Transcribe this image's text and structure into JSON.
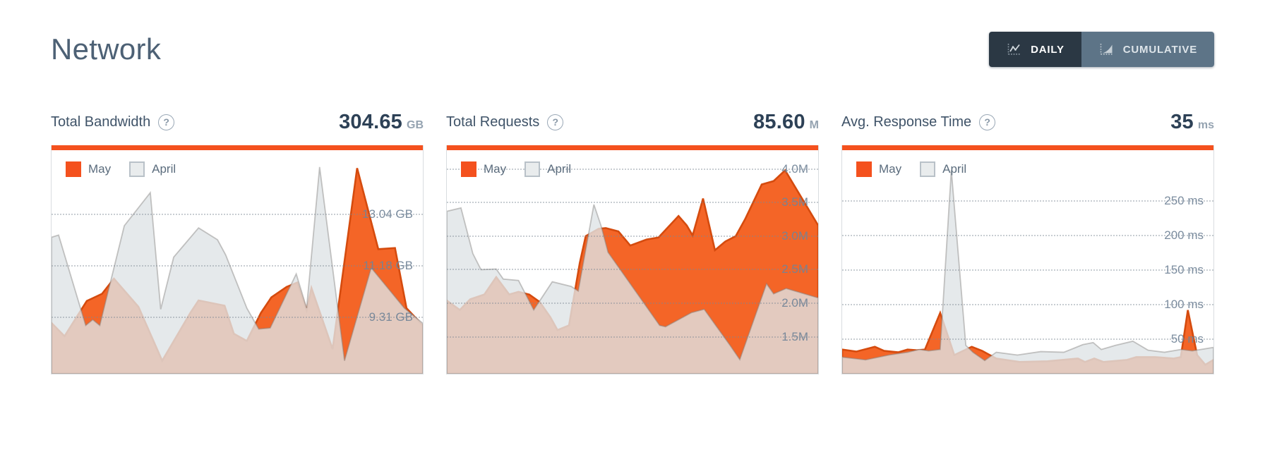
{
  "title": "Network",
  "toggle": {
    "daily_label": "DAILY",
    "cumulative_label": "CUMULATIVE",
    "active": "DAILY"
  },
  "colors": {
    "accent_orange": "#f4511e",
    "may_fill": "#f46527",
    "may_stroke": "#d54b0e",
    "april_fill": "#e8ebed",
    "april_stroke": "#c3cacf",
    "grid_dots": "#c8cdd1",
    "tick_text": "#8494a4",
    "title_text": "#4d6175",
    "value_text": "#2d4156",
    "daily_button_bg": "#2b3844",
    "cumulative_button_bg": "#5d7487"
  },
  "chart_data": [
    {
      "type": "area",
      "title": "Total Bandwidth",
      "summary_value": "304.65",
      "summary_unit": "GB",
      "legend": [
        "May",
        "April"
      ],
      "y_axis": {
        "min": 7.23,
        "max": 15.34,
        "unit": "GB",
        "grid": "dotted",
        "labels_position": "right-inside"
      },
      "y_ticks": [
        {
          "value": 13.04,
          "label": "13.04 GB"
        },
        {
          "value": 11.18,
          "label": "11.18 GB"
        },
        {
          "value": 9.31,
          "label": "9.31 GB"
        }
      ],
      "series": [
        {
          "name": "May",
          "points": [
            [
              0,
              9.07
            ],
            [
              3.5,
              8.59
            ],
            [
              9.5,
              9.87
            ],
            [
              13.6,
              10.13
            ],
            [
              16.8,
              10.68
            ],
            [
              23.4,
              9.66
            ],
            [
              29.8,
              7.7
            ],
            [
              37.4,
              9.44
            ],
            [
              39.6,
              9.89
            ],
            [
              46.6,
              9.7
            ],
            [
              49.1,
              8.68
            ],
            [
              52.6,
              8.42
            ],
            [
              56.4,
              9.44
            ],
            [
              59.2,
              10.0
            ],
            [
              63.3,
              10.38
            ],
            [
              66.2,
              10.54
            ],
            [
              68.7,
              9.53
            ],
            [
              70.0,
              10.34
            ],
            [
              75.7,
              8.12
            ],
            [
              82.3,
              14.69
            ],
            [
              88.0,
              11.75
            ],
            [
              92.5,
              11.79
            ],
            [
              95.6,
              9.61
            ],
            [
              100,
              8.98
            ]
          ]
        },
        {
          "name": "April",
          "points": [
            [
              0,
              12.18
            ],
            [
              1.9,
              12.26
            ],
            [
              9.2,
              8.98
            ],
            [
              11.1,
              9.19
            ],
            [
              13.0,
              8.98
            ],
            [
              19.6,
              12.6
            ],
            [
              26.6,
              13.8
            ],
            [
              29.4,
              9.57
            ],
            [
              32.9,
              11.46
            ],
            [
              39.6,
              12.52
            ],
            [
              44.7,
              12.09
            ],
            [
              46.9,
              11.54
            ],
            [
              52.6,
              9.61
            ],
            [
              55.8,
              8.85
            ],
            [
              58.9,
              8.89
            ],
            [
              65.9,
              10.85
            ],
            [
              68.7,
              9.61
            ],
            [
              72.2,
              14.73
            ],
            [
              78.9,
              7.7
            ],
            [
              86.1,
              11.07
            ],
            [
              95.0,
              9.61
            ],
            [
              100,
              9.06
            ]
          ]
        }
      ]
    },
    {
      "type": "area",
      "title": "Total Requests",
      "summary_value": "85.60",
      "summary_unit": "M",
      "legend": [
        "May",
        "April"
      ],
      "y_axis": {
        "min": 0.94,
        "max": 4.27,
        "unit": "M",
        "grid": "dotted",
        "labels_position": "right-inside"
      },
      "y_ticks": [
        {
          "value": 4.0,
          "label": "4.0M"
        },
        {
          "value": 3.5,
          "label": "3.5M"
        },
        {
          "value": 3.0,
          "label": "3.0M"
        },
        {
          "value": 2.5,
          "label": "2.5M"
        },
        {
          "value": 2.0,
          "label": "2.0M"
        },
        {
          "value": 1.5,
          "label": "1.5M"
        }
      ],
      "series": [
        {
          "name": "May",
          "points": [
            [
              0,
              2.03
            ],
            [
              3.5,
              1.89
            ],
            [
              6.3,
              2.05
            ],
            [
              10.1,
              2.12
            ],
            [
              13.3,
              2.38
            ],
            [
              16.8,
              2.12
            ],
            [
              19.3,
              2.16
            ],
            [
              22.2,
              2.12
            ],
            [
              25.0,
              2.01
            ],
            [
              27.9,
              1.78
            ],
            [
              29.8,
              1.59
            ],
            [
              32.9,
              1.66
            ],
            [
              35.8,
              2.59
            ],
            [
              37.4,
              2.99
            ],
            [
              40.9,
              3.1
            ],
            [
              42.8,
              3.11
            ],
            [
              46.2,
              3.06
            ],
            [
              49.4,
              2.85
            ],
            [
              53.8,
              2.94
            ],
            [
              57.0,
              2.97
            ],
            [
              62.4,
              3.29
            ],
            [
              64.6,
              3.15
            ],
            [
              66.2,
              3.0
            ],
            [
              69.0,
              3.55
            ],
            [
              72.2,
              2.78
            ],
            [
              75.0,
              2.91
            ],
            [
              77.8,
              2.99
            ],
            [
              80.4,
              3.25
            ],
            [
              84.8,
              3.76
            ],
            [
              88.0,
              3.81
            ],
            [
              91.1,
              3.97
            ],
            [
              96.2,
              3.5
            ],
            [
              100,
              3.15
            ]
          ]
        },
        {
          "name": "April",
          "points": [
            [
              0,
              3.36
            ],
            [
              3.8,
              3.41
            ],
            [
              7.0,
              2.73
            ],
            [
              9.2,
              2.49
            ],
            [
              13.3,
              2.5
            ],
            [
              15.2,
              2.35
            ],
            [
              19.3,
              2.33
            ],
            [
              23.4,
              1.89
            ],
            [
              28.4,
              2.31
            ],
            [
              33.5,
              2.24
            ],
            [
              35.4,
              2.17
            ],
            [
              39.6,
              3.46
            ],
            [
              41.5,
              3.15
            ],
            [
              43.4,
              2.75
            ],
            [
              57.3,
              1.66
            ],
            [
              58.9,
              1.64
            ],
            [
              65.9,
              1.85
            ],
            [
              69.3,
              1.9
            ],
            [
              76.3,
              1.36
            ],
            [
              78.9,
              1.15
            ],
            [
              86.1,
              2.28
            ],
            [
              88.0,
              2.13
            ],
            [
              91.4,
              2.21
            ],
            [
              100,
              2.07
            ]
          ]
        }
      ]
    },
    {
      "type": "area",
      "title": "Avg. Response Time",
      "summary_value": "35",
      "summary_unit": "ms",
      "legend": [
        "May",
        "April"
      ],
      "y_axis": {
        "min": -1,
        "max": 322,
        "unit": "ms",
        "grid": "dotted",
        "labels_position": "right-inside"
      },
      "y_ticks": [
        {
          "value": 250,
          "label": "250 ms"
        },
        {
          "value": 200,
          "label": "200 ms"
        },
        {
          "value": 150,
          "label": "150 ms"
        },
        {
          "value": 100,
          "label": "100 ms"
        },
        {
          "value": 50,
          "label": "50 ms"
        }
      ],
      "series": [
        {
          "name": "May",
          "points": [
            [
              0,
              34
            ],
            [
              3.8,
              31
            ],
            [
              8.8,
              38
            ],
            [
              11.3,
              32
            ],
            [
              15.1,
              30
            ],
            [
              17.6,
              34
            ],
            [
              20.1,
              33
            ],
            [
              22.3,
              34
            ],
            [
              26.4,
              87
            ],
            [
              30.2,
              26
            ],
            [
              34.9,
              38
            ],
            [
              37.7,
              32
            ],
            [
              41.5,
              21
            ],
            [
              47.8,
              16
            ],
            [
              55.3,
              17
            ],
            [
              63.5,
              21
            ],
            [
              65.4,
              16
            ],
            [
              67.9,
              21
            ],
            [
              70.4,
              16
            ],
            [
              76.7,
              19
            ],
            [
              79.2,
              23
            ],
            [
              84.3,
              23
            ],
            [
              89.3,
              21
            ],
            [
              91.2,
              23
            ],
            [
              93.1,
              91
            ],
            [
              95.6,
              26
            ],
            [
              97.8,
              12
            ],
            [
              100,
              19
            ]
          ]
        },
        {
          "name": "April",
          "points": [
            [
              0,
              23
            ],
            [
              6.3,
              19
            ],
            [
              12.6,
              26
            ],
            [
              17.6,
              30
            ],
            [
              20.8,
              34
            ],
            [
              23.3,
              32
            ],
            [
              26.4,
              34
            ],
            [
              29.4,
              293
            ],
            [
              33.3,
              40
            ],
            [
              35.2,
              30
            ],
            [
              38.4,
              18
            ],
            [
              41.5,
              30
            ],
            [
              47.2,
              26
            ],
            [
              53.5,
              31
            ],
            [
              59.7,
              30
            ],
            [
              64.8,
              41
            ],
            [
              67.6,
              44
            ],
            [
              69.8,
              34
            ],
            [
              73.6,
              40
            ],
            [
              78.3,
              46
            ],
            [
              82.4,
              33
            ],
            [
              86.8,
              30
            ],
            [
              91.2,
              34
            ],
            [
              94.3,
              32
            ],
            [
              100,
              37
            ]
          ]
        }
      ]
    }
  ]
}
